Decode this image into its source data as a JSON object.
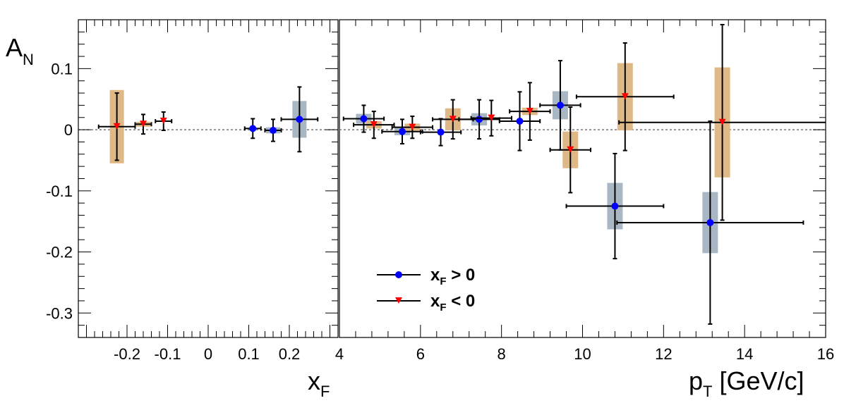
{
  "chart_data": [
    {
      "type": "scatter",
      "panel": "left",
      "xlabel": {
        "main": "x",
        "sub": "F"
      },
      "ylabel": {
        "main": "A",
        "sub": "N"
      },
      "xlim": [
        -0.32,
        0.32
      ],
      "ylim": [
        -0.34,
        0.18
      ],
      "xticks": [
        "-0.2",
        "-0.1",
        "0",
        "0.1",
        "0.2"
      ],
      "xtick_values": [
        -0.2,
        -0.1,
        0,
        0.1,
        0.2
      ],
      "yticks": [
        "0.1",
        "0",
        "-0.1",
        "-0.2",
        "-0.3"
      ],
      "ytick_values": [
        0.1,
        0,
        -0.1,
        -0.2,
        -0.3
      ],
      "series": [
        {
          "key": "xf_pos",
          "marker": "circle",
          "color": "#0000ff",
          "sys_color": "#a9b6c3",
          "points": [
            {
              "x": 0.11,
              "y": 0.002,
              "xerr": 0.02,
              "yerr": 0.016,
              "sys": 0.0
            },
            {
              "x": 0.16,
              "y": -0.001,
              "xerr": 0.02,
              "yerr": 0.018,
              "sys": 0.005
            },
            {
              "x": 0.225,
              "y": 0.017,
              "xerr": 0.045,
              "yerr": 0.053,
              "sys": 0.03
            }
          ]
        },
        {
          "key": "xf_neg",
          "marker": "triangle-down",
          "color": "#ff0000",
          "sys_color": "#deb887",
          "points": [
            {
              "x": -0.225,
              "y": 0.005,
              "xerr": 0.045,
              "yerr": 0.055,
              "sys": 0.06
            },
            {
              "x": -0.16,
              "y": 0.009,
              "xerr": 0.02,
              "yerr": 0.016,
              "sys": 0.004
            },
            {
              "x": -0.11,
              "y": 0.014,
              "xerr": 0.02,
              "yerr": 0.015,
              "sys": 0.0
            }
          ]
        }
      ]
    },
    {
      "type": "scatter",
      "panel": "right",
      "xlabel": {
        "main": "p",
        "sub": "T",
        "rest": " [GeV/c]"
      },
      "xlim": [
        4,
        16
      ],
      "ylim": [
        -0.34,
        0.18
      ],
      "xticks": [
        "4",
        "6",
        "8",
        "10",
        "12",
        "14",
        "16"
      ],
      "xtick_values": [
        4,
        6,
        8,
        10,
        12,
        14,
        16
      ],
      "series": [
        {
          "key": "xf_pos",
          "name": "x_F > 0",
          "marker": "circle",
          "color": "#0000ff",
          "sys_color": "#a9b6c3",
          "points": [
            {
              "x": 4.6,
              "y": 0.018,
              "xerr": 0.5,
              "yerr": 0.022,
              "sys": 0.008
            },
            {
              "x": 5.55,
              "y": -0.003,
              "xerr": 0.5,
              "yerr": 0.02,
              "sys": 0.006
            },
            {
              "x": 6.5,
              "y": -0.004,
              "xerr": 0.5,
              "yerr": 0.022,
              "sys": 0.0
            },
            {
              "x": 7.45,
              "y": 0.017,
              "xerr": 0.5,
              "yerr": 0.032,
              "sys": 0.01
            },
            {
              "x": 8.45,
              "y": 0.014,
              "xerr": 0.5,
              "yerr": 0.048,
              "sys": 0.0
            },
            {
              "x": 9.45,
              "y": 0.04,
              "xerr": 0.5,
              "yerr": 0.073,
              "sys": 0.023
            },
            {
              "x": 10.8,
              "y": -0.125,
              "xerr": 1.2,
              "yerr": 0.086,
              "sys": 0.038
            },
            {
              "x": 13.15,
              "y": -0.152,
              "xerr": 2.3,
              "yerr": 0.166,
              "sys": 0.05
            }
          ]
        },
        {
          "key": "xf_neg",
          "name": "x_F < 0",
          "marker": "triangle-down",
          "color": "#ff0000",
          "sys_color": "#deb887",
          "points": [
            {
              "x": 4.85,
              "y": 0.008,
              "xerr": 0.5,
              "yerr": 0.022,
              "sys": 0.006
            },
            {
              "x": 5.8,
              "y": 0.004,
              "xerr": 0.5,
              "yerr": 0.018,
              "sys": 0.006
            },
            {
              "x": 6.8,
              "y": 0.017,
              "xerr": 0.5,
              "yerr": 0.032,
              "sys": 0.018
            },
            {
              "x": 7.75,
              "y": 0.019,
              "xerr": 0.5,
              "yerr": 0.029,
              "sys": 0.0
            },
            {
              "x": 8.7,
              "y": 0.03,
              "xerr": 0.5,
              "yerr": 0.047,
              "sys": 0.006
            },
            {
              "x": 9.7,
              "y": -0.033,
              "xerr": 0.5,
              "yerr": 0.07,
              "sys": 0.03
            },
            {
              "x": 11.05,
              "y": 0.054,
              "xerr": 1.2,
              "yerr": 0.088,
              "sys": 0.055
            },
            {
              "x": 13.45,
              "y": 0.012,
              "xerr": 2.55,
              "yerr": 0.16,
              "sys": 0.09
            }
          ]
        }
      ],
      "legend": {
        "placement": "bottom-left",
        "entries": [
          {
            "key": "xf_pos",
            "main": "x",
            "sub": "F",
            "rest": " > 0"
          },
          {
            "key": "xf_neg",
            "main": "x",
            "sub": "F",
            "rest": " < 0"
          }
        ]
      }
    }
  ]
}
